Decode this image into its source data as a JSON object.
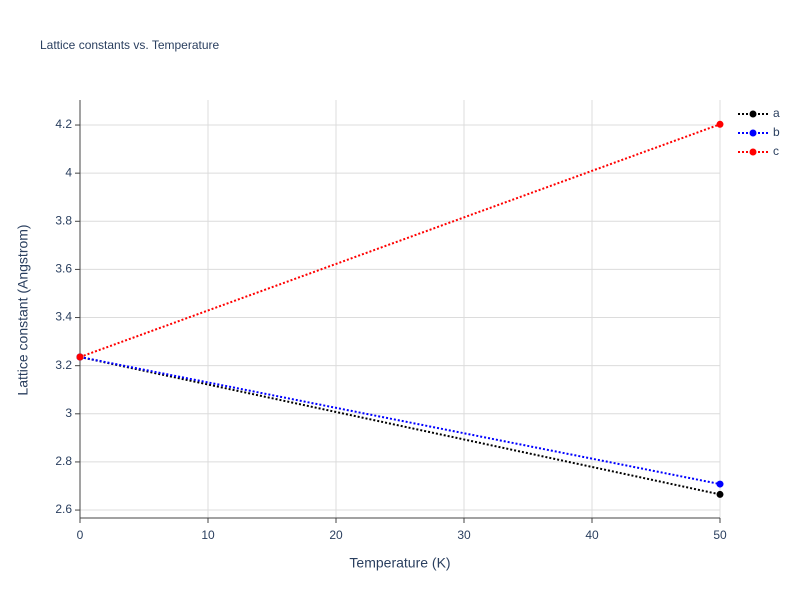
{
  "chart_data": {
    "type": "line",
    "title": "Lattice constants vs. Temperature",
    "x_label": "Temperature (K)",
    "y_label": "Lattice constant (Angstrom)",
    "x": [
      0,
      50
    ],
    "series": [
      {
        "name": "a",
        "color": "#000000",
        "values": [
          3.236,
          2.665
        ]
      },
      {
        "name": "b",
        "color": "#0000ff",
        "values": [
          3.236,
          2.708
        ]
      },
      {
        "name": "c",
        "color": "#ff0000",
        "values": [
          3.236,
          4.203
        ]
      }
    ],
    "xlim": [
      0,
      50
    ],
    "xticks": [
      0,
      10,
      20,
      30,
      40,
      50
    ],
    "ylim": [
      2.567,
      4.304
    ],
    "yticks": [
      2.6,
      2.8,
      3,
      3.2,
      3.4,
      3.6,
      3.8,
      4,
      4.2
    ],
    "grid": true,
    "legend": "top-right"
  }
}
